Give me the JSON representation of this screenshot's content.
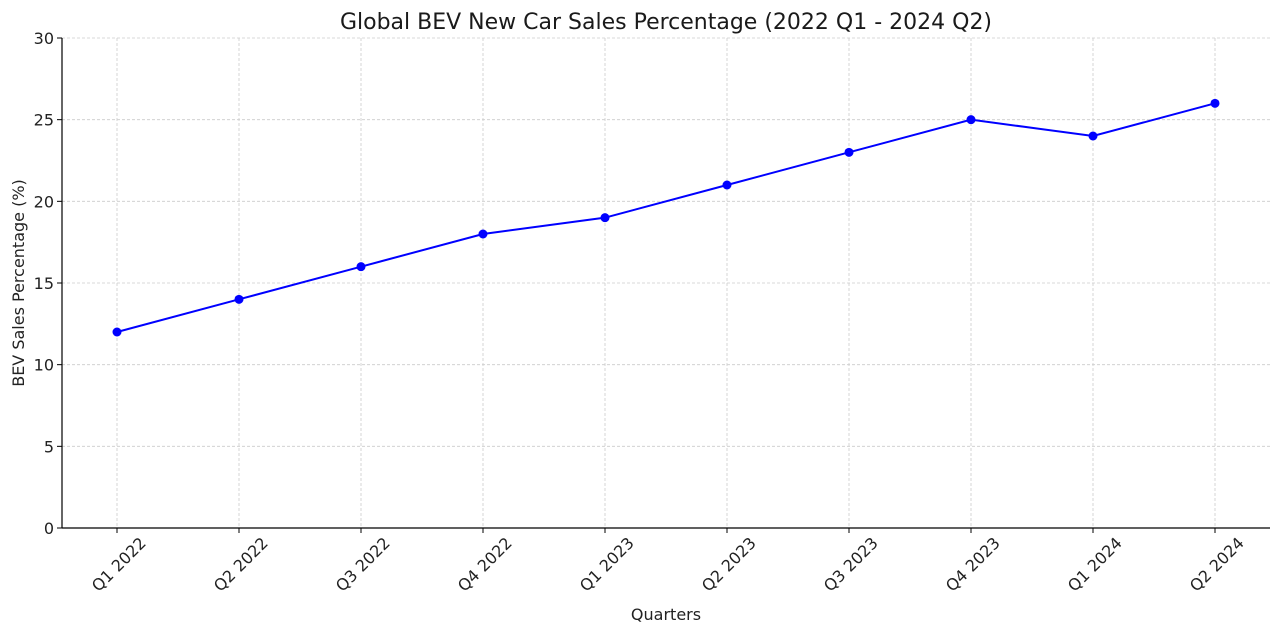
{
  "chart_data": {
    "type": "line",
    "title": "Global BEV New Car Sales Percentage (2022 Q1 - 2024 Q2)",
    "xlabel": "Quarters",
    "ylabel": "BEV Sales Percentage (%)",
    "categories": [
      "Q1 2022",
      "Q2 2022",
      "Q3 2022",
      "Q4 2022",
      "Q1 2023",
      "Q2 2023",
      "Q3 2023",
      "Q4 2023",
      "Q1 2024",
      "Q2 2024"
    ],
    "series": [
      {
        "name": "BEV Sales Percentage",
        "values": [
          12,
          14,
          16,
          18,
          19,
          21,
          23,
          25,
          24,
          26
        ],
        "color": "#0000ff",
        "marker": "circle"
      }
    ],
    "ylim": [
      0,
      30
    ],
    "yticks": [
      0,
      5,
      10,
      15,
      20,
      25,
      30
    ],
    "grid": true,
    "legend": null,
    "xtick_rotation": 45
  }
}
